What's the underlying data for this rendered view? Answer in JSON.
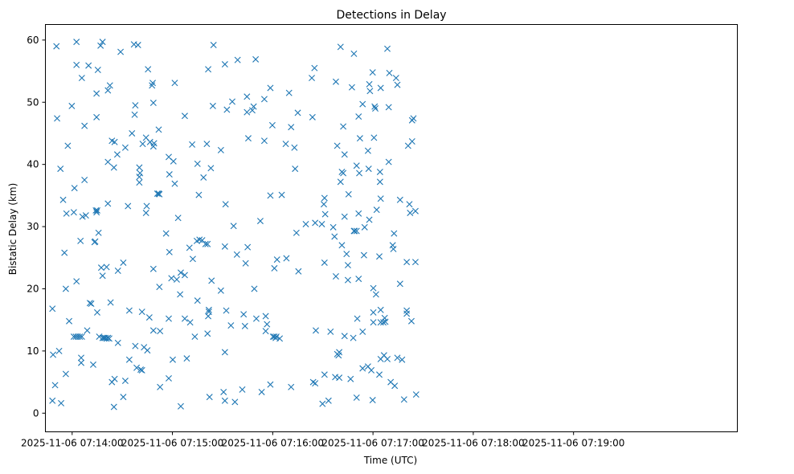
{
  "chart_data": {
    "type": "scatter",
    "title": "Detections in Delay",
    "xlabel": "Time (UTC)",
    "ylabel": "Bistatic Delay (km)",
    "marker": "x",
    "color": "#1f77b4",
    "grid": false,
    "x_unit": "seconds after 2025-11-06 07:14:00",
    "xlim": [
      -16,
      398
    ],
    "ylim": [
      -3,
      62.5
    ],
    "x_ticks": [
      {
        "value": 0,
        "label": "2025-11-06 07:14:00"
      },
      {
        "value": 60,
        "label": "2025-11-06 07:15:00"
      },
      {
        "value": 120,
        "label": "2025-11-06 07:16:00"
      },
      {
        "value": 180,
        "label": "2025-11-06 07:17:00"
      },
      {
        "value": 240,
        "label": "2025-11-06 07:18:00"
      },
      {
        "value": 300,
        "label": "2025-11-06 07:19:00"
      }
    ],
    "y_ticks": [
      {
        "value": 0,
        "label": "0"
      },
      {
        "value": 10,
        "label": "10"
      },
      {
        "value": 20,
        "label": "20"
      },
      {
        "value": 30,
        "label": "30"
      },
      {
        "value": 40,
        "label": "40"
      },
      {
        "value": 50,
        "label": "50"
      },
      {
        "value": 60,
        "label": "60"
      }
    ],
    "points": [
      [
        -11.4,
        9.4
      ],
      [
        -11.8,
        16.8
      ],
      [
        -11.8,
        2.0
      ],
      [
        -10.2,
        4.5
      ],
      [
        -9.4,
        59.0
      ],
      [
        -9.0,
        47.4
      ],
      [
        -7.8,
        10.0
      ],
      [
        -7.0,
        39.3
      ],
      [
        -6.6,
        1.6
      ],
      [
        -5.4,
        34.3
      ],
      [
        -4.6,
        25.8
      ],
      [
        -3.8,
        20.0
      ],
      [
        -3.8,
        6.3
      ],
      [
        -3.4,
        32.1
      ],
      [
        -2.6,
        43.0
      ],
      [
        -1.8,
        14.8
      ],
      [
        -0.2,
        49.4
      ],
      [
        1.0,
        32.3
      ],
      [
        1.4,
        36.2
      ],
      [
        1.0,
        12.3
      ],
      [
        2.2,
        12.3
      ],
      [
        3.4,
        12.3
      ],
      [
        4.6,
        12.3
      ],
      [
        5.8,
        12.3
      ],
      [
        2.6,
        59.7
      ],
      [
        2.6,
        56.0
      ],
      [
        2.6,
        21.2
      ],
      [
        5.0,
        27.7
      ],
      [
        5.4,
        8.9
      ],
      [
        5.4,
        8.1
      ],
      [
        5.8,
        53.9
      ],
      [
        6.2,
        31.6
      ],
      [
        7.4,
        46.2
      ],
      [
        7.4,
        37.5
      ],
      [
        8.2,
        31.8
      ],
      [
        9.0,
        13.3
      ],
      [
        9.8,
        55.9
      ],
      [
        10.6,
        17.7
      ],
      [
        11.4,
        17.6
      ],
      [
        12.6,
        7.8
      ],
      [
        13.4,
        27.5
      ],
      [
        13.8,
        27.6
      ],
      [
        14.2,
        32.6
      ],
      [
        14.6,
        32.3
      ],
      [
        15.0,
        32.6
      ],
      [
        14.6,
        47.6
      ],
      [
        14.6,
        51.4
      ],
      [
        15.0,
        16.2
      ],
      [
        15.4,
        55.2
      ],
      [
        15.8,
        29.0
      ],
      [
        16.2,
        12.3
      ],
      [
        17.0,
        59.1
      ],
      [
        18.2,
        59.7
      ],
      [
        17.4,
        23.4
      ],
      [
        18.2,
        22.1
      ],
      [
        18.2,
        12.1
      ],
      [
        19.0,
        12.1
      ],
      [
        19.8,
        12.1
      ],
      [
        20.6,
        12.0
      ],
      [
        21.4,
        12.1
      ],
      [
        22.2,
        12.0
      ],
      [
        20.6,
        23.5
      ],
      [
        21.4,
        33.7
      ],
      [
        21.4,
        40.4
      ],
      [
        21.4,
        51.9
      ],
      [
        22.6,
        52.7
      ],
      [
        23.0,
        17.8
      ],
      [
        23.8,
        43.8
      ],
      [
        23.8,
        5.0
      ],
      [
        25.4,
        43.6
      ],
      [
        25.0,
        39.5
      ],
      [
        25.0,
        1.0
      ],
      [
        25.4,
        5.5
      ],
      [
        27.0,
        41.6
      ],
      [
        27.4,
        22.9
      ],
      [
        27.4,
        11.3
      ],
      [
        29.0,
        58.1
      ],
      [
        30.6,
        24.2
      ],
      [
        30.6,
        2.6
      ],
      [
        31.8,
        42.7
      ],
      [
        31.8,
        5.2
      ],
      [
        33.4,
        33.3
      ],
      [
        34.2,
        16.5
      ],
      [
        34.2,
        8.6
      ],
      [
        35.8,
        45.0
      ],
      [
        37.0,
        59.3
      ],
      [
        37.4,
        48.0
      ],
      [
        37.8,
        49.5
      ],
      [
        37.8,
        10.8
      ],
      [
        38.6,
        7.3
      ],
      [
        39.4,
        59.2
      ],
      [
        40.2,
        39.5
      ],
      [
        40.2,
        38.0
      ],
      [
        40.2,
        37.1
      ],
      [
        40.6,
        38.6
      ],
      [
        41.0,
        7.0
      ],
      [
        41.8,
        6.9
      ],
      [
        41.8,
        16.3
      ],
      [
        42.2,
        43.3
      ],
      [
        43.0,
        10.6
      ],
      [
        44.2,
        44.3
      ],
      [
        44.2,
        32.2
      ],
      [
        44.6,
        33.3
      ],
      [
        45.0,
        10.1
      ],
      [
        45.4,
        55.3
      ],
      [
        46.6,
        43.6
      ],
      [
        46.2,
        15.4
      ],
      [
        47.8,
        52.7
      ],
      [
        48.2,
        53.1
      ],
      [
        48.6,
        49.9
      ],
      [
        48.6,
        42.9
      ],
      [
        49.0,
        43.4
      ],
      [
        48.6,
        23.2
      ],
      [
        48.6,
        13.3
      ],
      [
        51.0,
        35.3
      ],
      [
        51.8,
        35.3
      ],
      [
        52.2,
        35.2
      ],
      [
        51.8,
        45.6
      ],
      [
        52.2,
        20.3
      ],
      [
        52.6,
        13.2
      ],
      [
        52.6,
        4.2
      ],
      [
        56.2,
        28.9
      ],
      [
        57.8,
        41.2
      ],
      [
        58.2,
        38.4
      ],
      [
        58.2,
        25.9
      ],
      [
        57.8,
        15.2
      ],
      [
        57.8,
        5.6
      ],
      [
        59.4,
        21.7
      ],
      [
        60.2,
        8.6
      ],
      [
        60.6,
        40.5
      ],
      [
        61.4,
        53.1
      ],
      [
        61.4,
        36.9
      ],
      [
        62.6,
        21.5
      ],
      [
        63.4,
        31.4
      ],
      [
        64.6,
        19.1
      ],
      [
        65.0,
        22.6
      ],
      [
        65.0,
        1.1
      ],
      [
        67.4,
        47.8
      ],
      [
        67.4,
        22.2
      ],
      [
        67.4,
        15.2
      ],
      [
        68.6,
        8.8
      ],
      [
        70.2,
        26.6
      ],
      [
        70.6,
        14.6
      ],
      [
        71.8,
        43.2
      ],
      [
        72.2,
        24.8
      ],
      [
        73.4,
        12.3
      ],
      [
        74.6,
        27.7
      ],
      [
        75.0,
        40.1
      ],
      [
        75.0,
        18.1
      ],
      [
        75.8,
        35.1
      ],
      [
        76.2,
        27.9
      ],
      [
        77.8,
        27.8
      ],
      [
        78.6,
        37.9
      ],
      [
        79.8,
        27.2
      ],
      [
        80.6,
        43.3
      ],
      [
        81.0,
        27.2
      ],
      [
        81.0,
        12.8
      ],
      [
        81.4,
        55.3
      ],
      [
        81.4,
        15.6
      ],
      [
        81.8,
        16.6
      ],
      [
        81.8,
        16.3
      ],
      [
        82.2,
        2.6
      ],
      [
        83.0,
        39.4
      ],
      [
        83.4,
        21.3
      ],
      [
        84.6,
        59.2
      ],
      [
        84.2,
        49.4
      ],
      [
        89.0,
        19.7
      ],
      [
        89.0,
        42.3
      ],
      [
        90.6,
        3.4
      ],
      [
        91.4,
        56.1
      ],
      [
        91.4,
        26.8
      ],
      [
        91.4,
        9.8
      ],
      [
        91.4,
        2.0
      ],
      [
        91.8,
        33.6
      ],
      [
        92.2,
        16.5
      ],
      [
        92.6,
        48.8
      ],
      [
        95.0,
        14.1
      ],
      [
        95.8,
        50.1
      ],
      [
        97.4,
        1.8
      ],
      [
        96.6,
        30.1
      ],
      [
        98.6,
        25.5
      ],
      [
        99.0,
        56.8
      ],
      [
        101.8,
        3.8
      ],
      [
        102.6,
        15.9
      ],
      [
        103.4,
        14.0
      ],
      [
        103.8,
        24.1
      ],
      [
        104.6,
        48.4
      ],
      [
        104.6,
        50.9
      ],
      [
        105.0,
        26.7
      ],
      [
        105.4,
        44.2
      ],
      [
        107.8,
        48.7
      ],
      [
        108.6,
        49.3
      ],
      [
        109.0,
        20.0
      ],
      [
        109.8,
        56.9
      ],
      [
        110.2,
        15.2
      ],
      [
        112.6,
        30.9
      ],
      [
        113.4,
        3.4
      ],
      [
        115.0,
        43.8
      ],
      [
        115.0,
        50.5
      ],
      [
        115.8,
        15.6
      ],
      [
        115.8,
        13.2
      ],
      [
        116.6,
        14.3
      ],
      [
        118.6,
        52.3
      ],
      [
        118.6,
        35.0
      ],
      [
        118.6,
        4.6
      ],
      [
        119.8,
        46.3
      ],
      [
        120.2,
        12.3
      ],
      [
        121.0,
        12.3
      ],
      [
        121.8,
        12.1
      ],
      [
        122.2,
        12.3
      ],
      [
        121.0,
        23.3
      ],
      [
        122.6,
        24.7
      ],
      [
        124.2,
        12.0
      ],
      [
        125.4,
        35.1
      ],
      [
        127.8,
        43.3
      ],
      [
        128.2,
        24.9
      ],
      [
        129.8,
        51.5
      ],
      [
        131.0,
        46.0
      ],
      [
        131.0,
        4.2
      ],
      [
        133.0,
        42.7
      ],
      [
        133.4,
        39.3
      ],
      [
        134.2,
        29.0
      ],
      [
        135.0,
        48.3
      ],
      [
        135.4,
        22.8
      ],
      [
        139.8,
        30.4
      ],
      [
        143.4,
        53.9
      ],
      [
        143.8,
        47.6
      ],
      [
        144.2,
        5.0
      ],
      [
        145.0,
        55.5
      ],
      [
        145.4,
        30.6
      ],
      [
        145.4,
        4.8
      ],
      [
        145.8,
        13.3
      ],
      [
        149.4,
        30.4
      ],
      [
        149.8,
        1.5
      ],
      [
        150.6,
        33.6
      ],
      [
        151.0,
        34.6
      ],
      [
        151.0,
        24.2
      ],
      [
        151.4,
        32.0
      ],
      [
        151.0,
        6.2
      ],
      [
        153.4,
        2.0
      ],
      [
        154.6,
        13.1
      ],
      [
        156.2,
        29.9
      ],
      [
        157.0,
        28.4
      ],
      [
        157.8,
        22.0
      ],
      [
        157.4,
        5.8
      ],
      [
        157.8,
        53.3
      ],
      [
        158.6,
        43.0
      ],
      [
        158.6,
        9.5
      ],
      [
        159.4,
        9.3
      ],
      [
        159.8,
        9.8
      ],
      [
        159.8,
        5.7
      ],
      [
        160.6,
        37.2
      ],
      [
        160.6,
        58.9
      ],
      [
        161.4,
        38.8
      ],
      [
        161.4,
        27.0
      ],
      [
        162.2,
        46.1
      ],
      [
        162.2,
        38.6
      ],
      [
        163.0,
        41.6
      ],
      [
        163.0,
        31.6
      ],
      [
        163.0,
        12.4
      ],
      [
        164.2,
        25.6
      ],
      [
        165.0,
        23.8
      ],
      [
        165.0,
        21.4
      ],
      [
        165.4,
        35.2
      ],
      [
        166.6,
        5.5
      ],
      [
        167.4,
        52.4
      ],
      [
        168.6,
        57.8
      ],
      [
        168.6,
        29.3
      ],
      [
        169.0,
        29.3
      ],
      [
        168.2,
        12.1
      ],
      [
        170.2,
        29.3
      ],
      [
        170.2,
        39.8
      ],
      [
        170.2,
        2.5
      ],
      [
        170.6,
        15.2
      ],
      [
        171.4,
        47.7
      ],
      [
        171.8,
        38.6
      ],
      [
        171.4,
        32.1
      ],
      [
        171.4,
        21.6
      ],
      [
        172.2,
        44.2
      ],
      [
        173.8,
        49.7
      ],
      [
        173.8,
        13.1
      ],
      [
        173.8,
        7.2
      ],
      [
        174.6,
        25.4
      ],
      [
        175.0,
        29.9
      ],
      [
        177.0,
        42.2
      ],
      [
        177.0,
        7.5
      ],
      [
        177.8,
        52.9
      ],
      [
        177.4,
        39.3
      ],
      [
        177.8,
        31.1
      ],
      [
        178.2,
        51.8
      ],
      [
        179.8,
        54.8
      ],
      [
        179.0,
        6.9
      ],
      [
        179.8,
        2.1
      ],
      [
        180.2,
        14.6
      ],
      [
        180.2,
        16.2
      ],
      [
        180.2,
        20.1
      ],
      [
        180.6,
        44.3
      ],
      [
        181.0,
        49.3
      ],
      [
        181.4,
        49.0
      ],
      [
        181.8,
        19.1
      ],
      [
        182.2,
        32.7
      ],
      [
        183.8,
        25.2
      ],
      [
        183.8,
        6.2
      ],
      [
        184.2,
        38.8
      ],
      [
        184.2,
        37.2
      ],
      [
        184.6,
        34.5
      ],
      [
        184.6,
        16.6
      ],
      [
        184.6,
        14.6
      ],
      [
        184.6,
        8.7
      ],
      [
        184.6,
        52.3
      ],
      [
        186.2,
        14.6
      ],
      [
        186.6,
        9.3
      ],
      [
        187.0,
        15.3
      ],
      [
        187.4,
        14.7
      ],
      [
        188.6,
        8.7
      ],
      [
        188.6,
        58.6
      ],
      [
        189.4,
        49.2
      ],
      [
        189.4,
        40.4
      ],
      [
        189.8,
        54.7
      ],
      [
        190.6,
        5.0
      ],
      [
        191.8,
        27.0
      ],
      [
        192.2,
        26.4
      ],
      [
        192.6,
        28.9
      ],
      [
        193.0,
        4.4
      ],
      [
        193.8,
        53.9
      ],
      [
        194.6,
        52.8
      ],
      [
        194.6,
        8.9
      ],
      [
        196.2,
        34.3
      ],
      [
        196.2,
        20.8
      ],
      [
        197.4,
        8.6
      ],
      [
        198.6,
        2.2
      ],
      [
        200.2,
        24.3
      ],
      [
        200.2,
        16.5
      ],
      [
        200.2,
        16.0
      ],
      [
        201.0,
        43.0
      ],
      [
        201.8,
        33.6
      ],
      [
        202.2,
        32.2
      ],
      [
        203.0,
        14.8
      ],
      [
        203.4,
        43.7
      ],
      [
        203.4,
        47.1
      ],
      [
        204.2,
        47.4
      ],
      [
        205.4,
        32.5
      ],
      [
        205.4,
        24.3
      ],
      [
        205.8,
        3.0
      ]
    ]
  }
}
